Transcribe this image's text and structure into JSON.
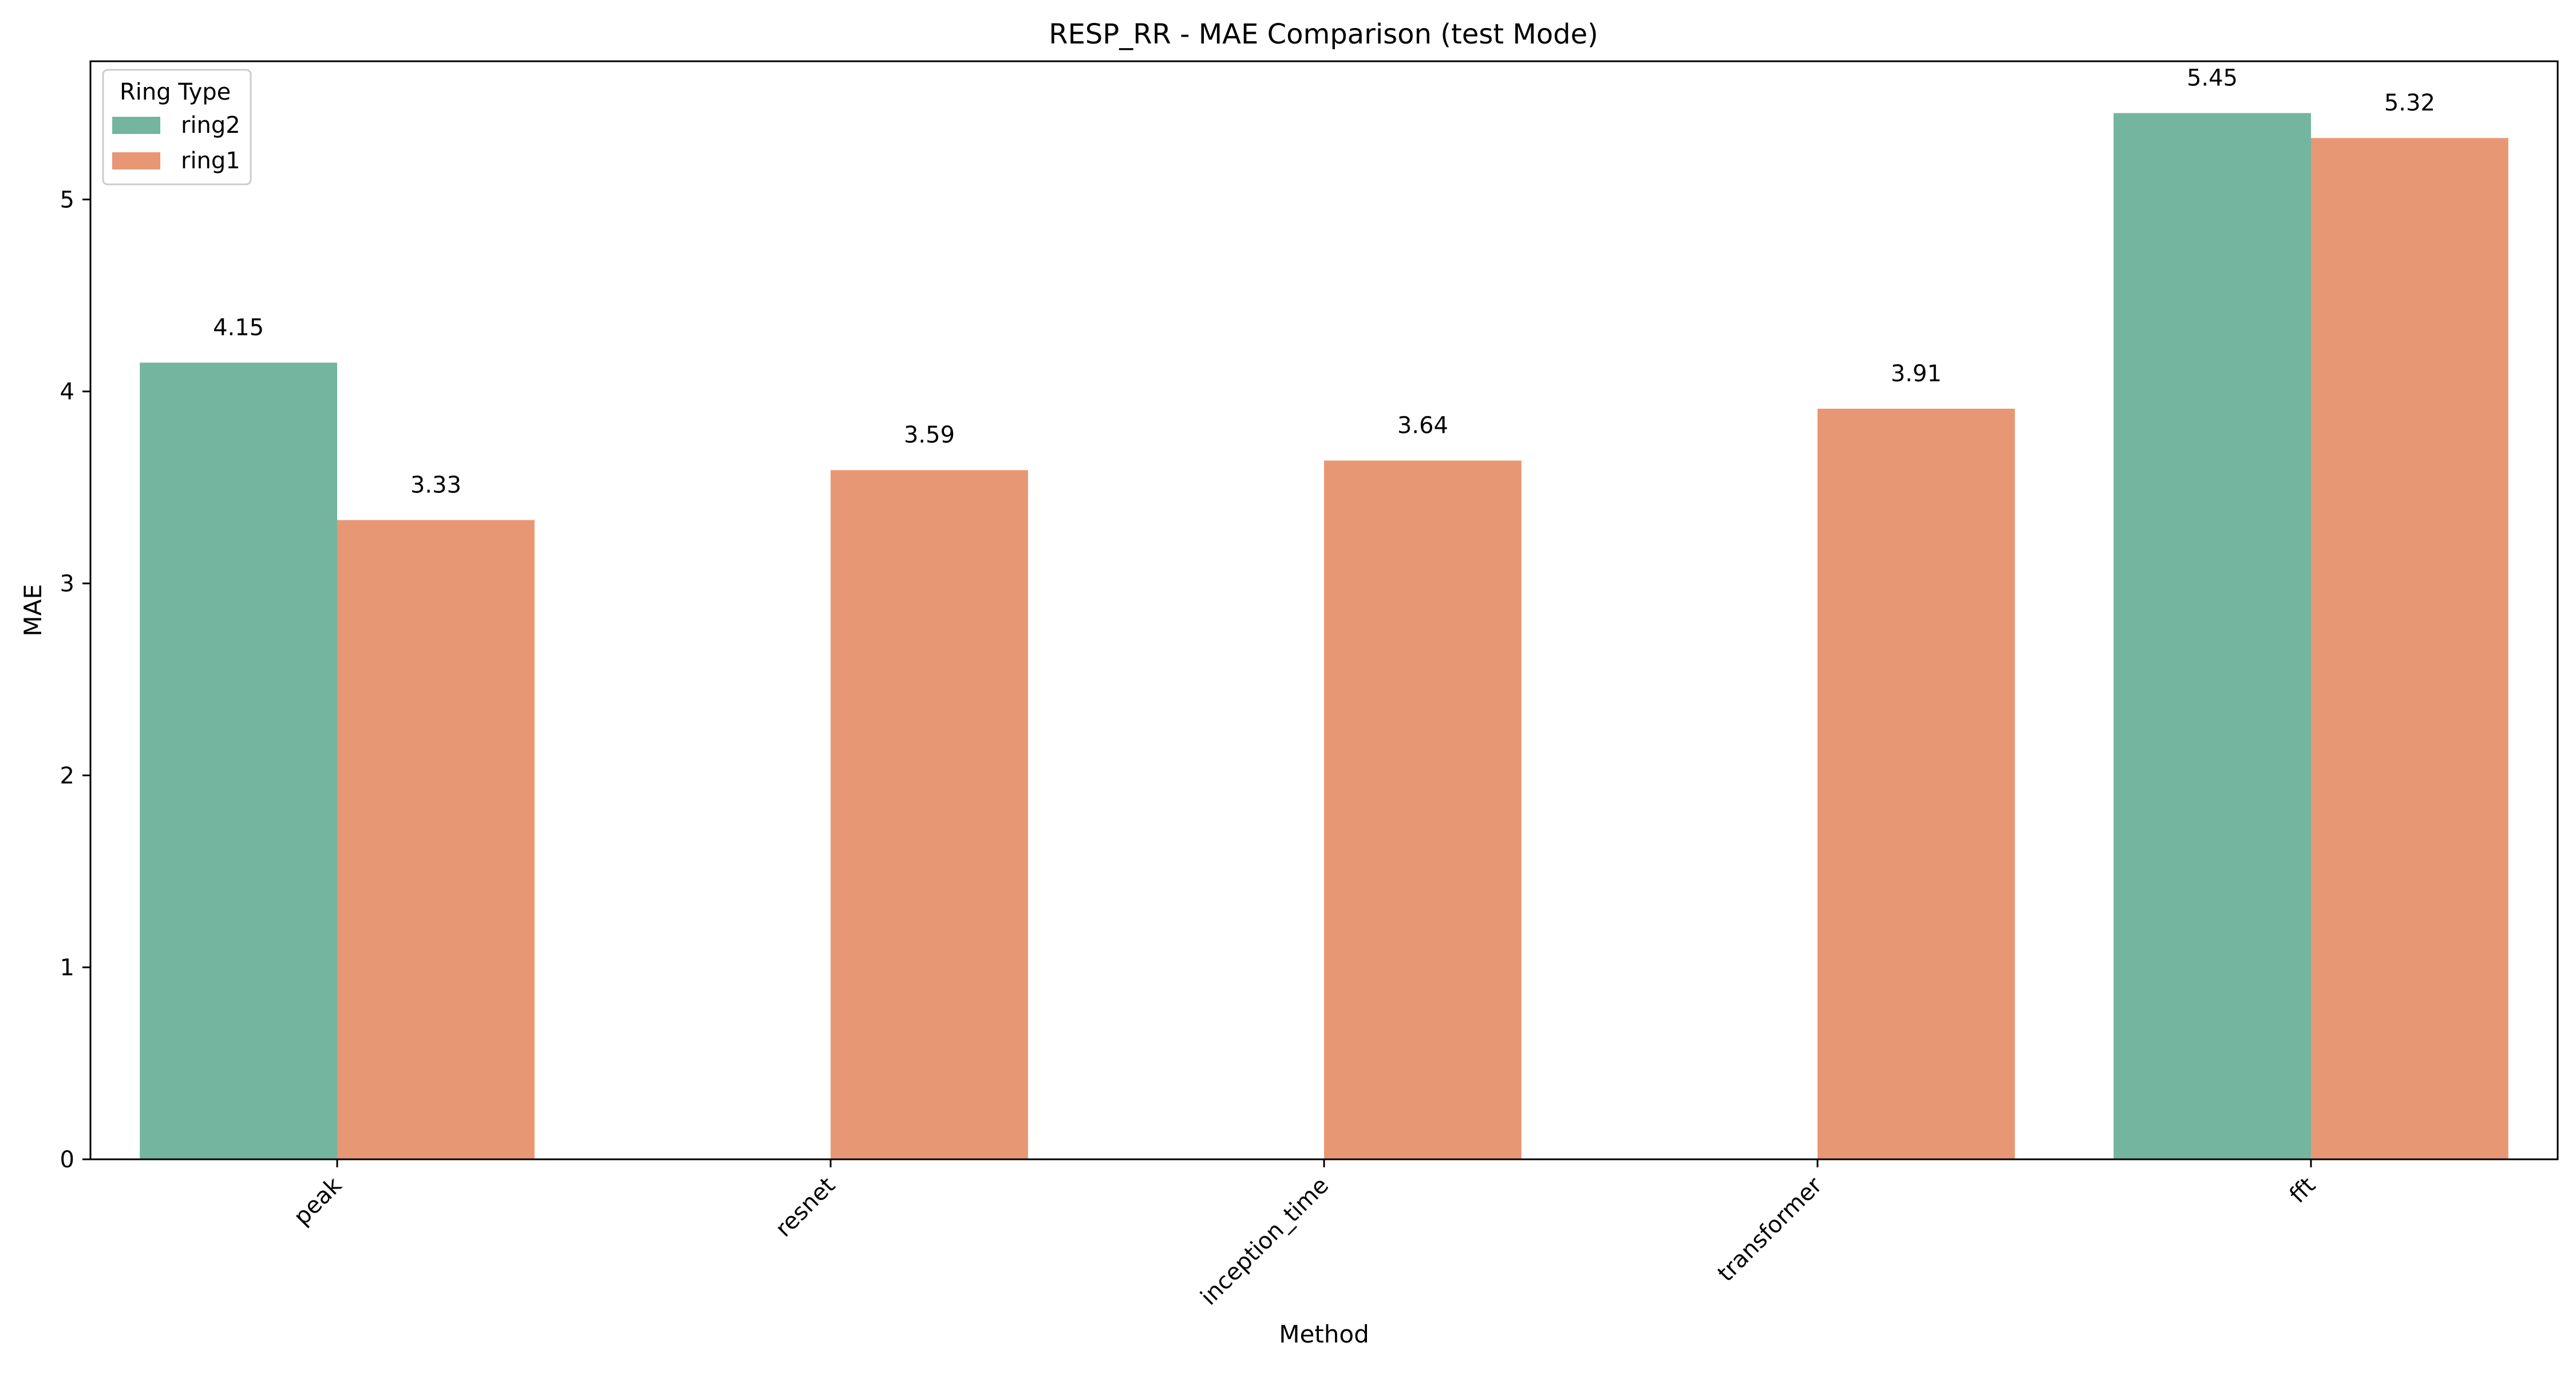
{
  "chart_data": {
    "type": "bar",
    "title": "RESP_RR - MAE Comparison (test Mode)",
    "xlabel": "Method",
    "ylabel": "MAE",
    "categories": [
      "peak",
      "resnet",
      "inception_time",
      "transformer",
      "fft"
    ],
    "series": [
      {
        "name": "ring2",
        "color": "#74b5a0",
        "values": [
          4.15,
          null,
          null,
          null,
          5.45
        ]
      },
      {
        "name": "ring1",
        "color": "#e89775",
        "values": [
          3.33,
          3.59,
          3.64,
          3.91,
          5.32
        ]
      }
    ],
    "ylim": [
      0,
      5.72
    ],
    "yticks": [
      0,
      1,
      2,
      3,
      4,
      5
    ],
    "grid": false,
    "legend": {
      "title": "Ring Type",
      "placement": "top-left"
    },
    "data_labels": true
  }
}
